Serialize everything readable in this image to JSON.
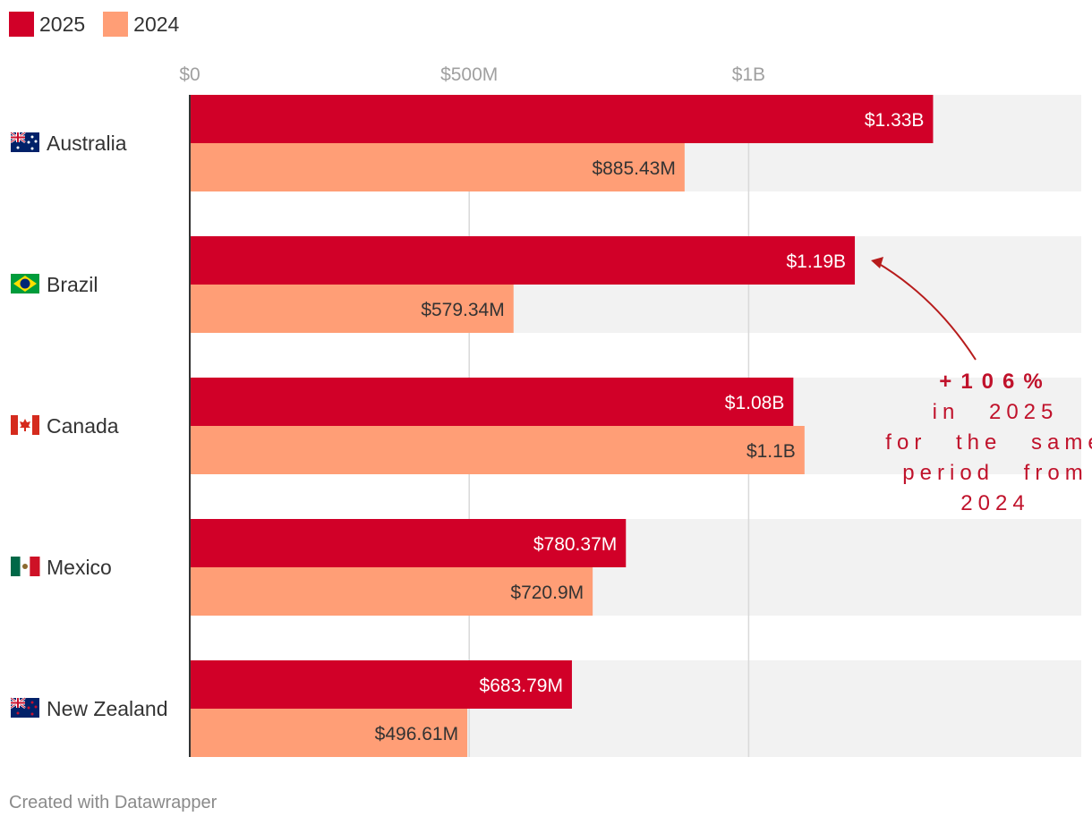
{
  "chart_data": {
    "type": "bar",
    "orientation": "horizontal",
    "categories": [
      "Australia",
      "Brazil",
      "Canada",
      "Mexico",
      "New Zealand"
    ],
    "flags": [
      "australia-flag",
      "brazil-flag",
      "canada-flag",
      "mexico-flag",
      "new-zealand-flag"
    ],
    "series": [
      {
        "name": "2025",
        "color": "#d10028",
        "values": [
          1330,
          1190,
          1080,
          780.37,
          683.79
        ],
        "labels": [
          "$1.33B",
          "$1.19B",
          "$1.08B",
          "$780.37M",
          "$683.79M"
        ]
      },
      {
        "name": "2024",
        "color": "#ff9e76",
        "values": [
          885.43,
          579.34,
          1100,
          720.9,
          496.61
        ],
        "labels": [
          "$885.43M",
          "$579.34M",
          "$1.1B",
          "$720.9M",
          "$496.61M"
        ]
      }
    ],
    "unit": "million USD",
    "xlim": [
      0,
      1600
    ],
    "xticks": [
      0,
      500,
      1000
    ],
    "xtick_labels": [
      "$0",
      "$500M",
      "$1B"
    ],
    "grid": true,
    "legend": "top-left",
    "annotation": {
      "target_category": "Brazil",
      "highlight": "+106%",
      "text_lines": [
        "in 2025",
        "for the same",
        "period from",
        "2024"
      ]
    }
  },
  "footer": {
    "credit": "Created with Datawrapper"
  }
}
